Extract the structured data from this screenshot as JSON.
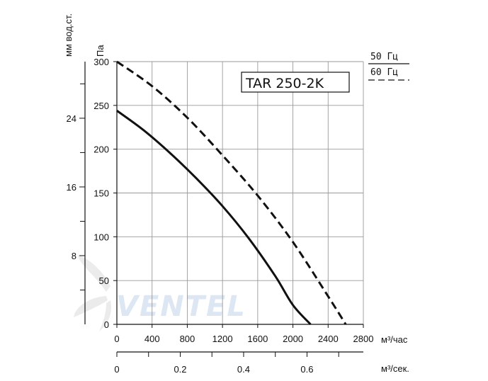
{
  "chart_data": {
    "type": "line",
    "title": "TAR 250-2K",
    "xlabel": "м³/час",
    "x2label": "м³/сек.",
    "ylabel": "Па",
    "y2label": "мм вод.ст.",
    "xlim": [
      0,
      2800
    ],
    "ylim": [
      0,
      300
    ],
    "x_ticks": [
      0,
      400,
      800,
      1200,
      1600,
      2000,
      2400,
      2800
    ],
    "y_ticks": [
      0,
      50,
      100,
      150,
      200,
      250,
      300
    ],
    "x2_ticks": [
      0,
      0.2,
      0.4,
      0.6
    ],
    "x2_tick_labels": [
      "0",
      "0.2",
      "0.4",
      "0.6"
    ],
    "y2_ticks": [
      8,
      16,
      24
    ],
    "grid": true,
    "series": [
      {
        "name": "50 Гц",
        "style": "solid",
        "x": [
          0,
          300,
          600,
          900,
          1200,
          1500,
          1800,
          2000,
          2200
        ],
        "y": [
          244,
          222,
          196,
          167,
          135,
          98,
          55,
          22,
          0
        ]
      },
      {
        "name": "60 Гц",
        "style": "dashed",
        "x": [
          0,
          400,
          800,
          1200,
          1600,
          2000,
          2400,
          2600
        ],
        "y": [
          300,
          272,
          236,
          193,
          147,
          94,
          32,
          0
        ]
      }
    ]
  },
  "legend": {
    "items": [
      {
        "label": "50 Гц",
        "style": "solid"
      },
      {
        "label": "60 Гц",
        "style": "dashed"
      }
    ]
  },
  "watermark": {
    "text": "VENTEL",
    "color": "#2f6fb6"
  },
  "colors": {
    "line": "#111111",
    "grid": "#999999"
  }
}
